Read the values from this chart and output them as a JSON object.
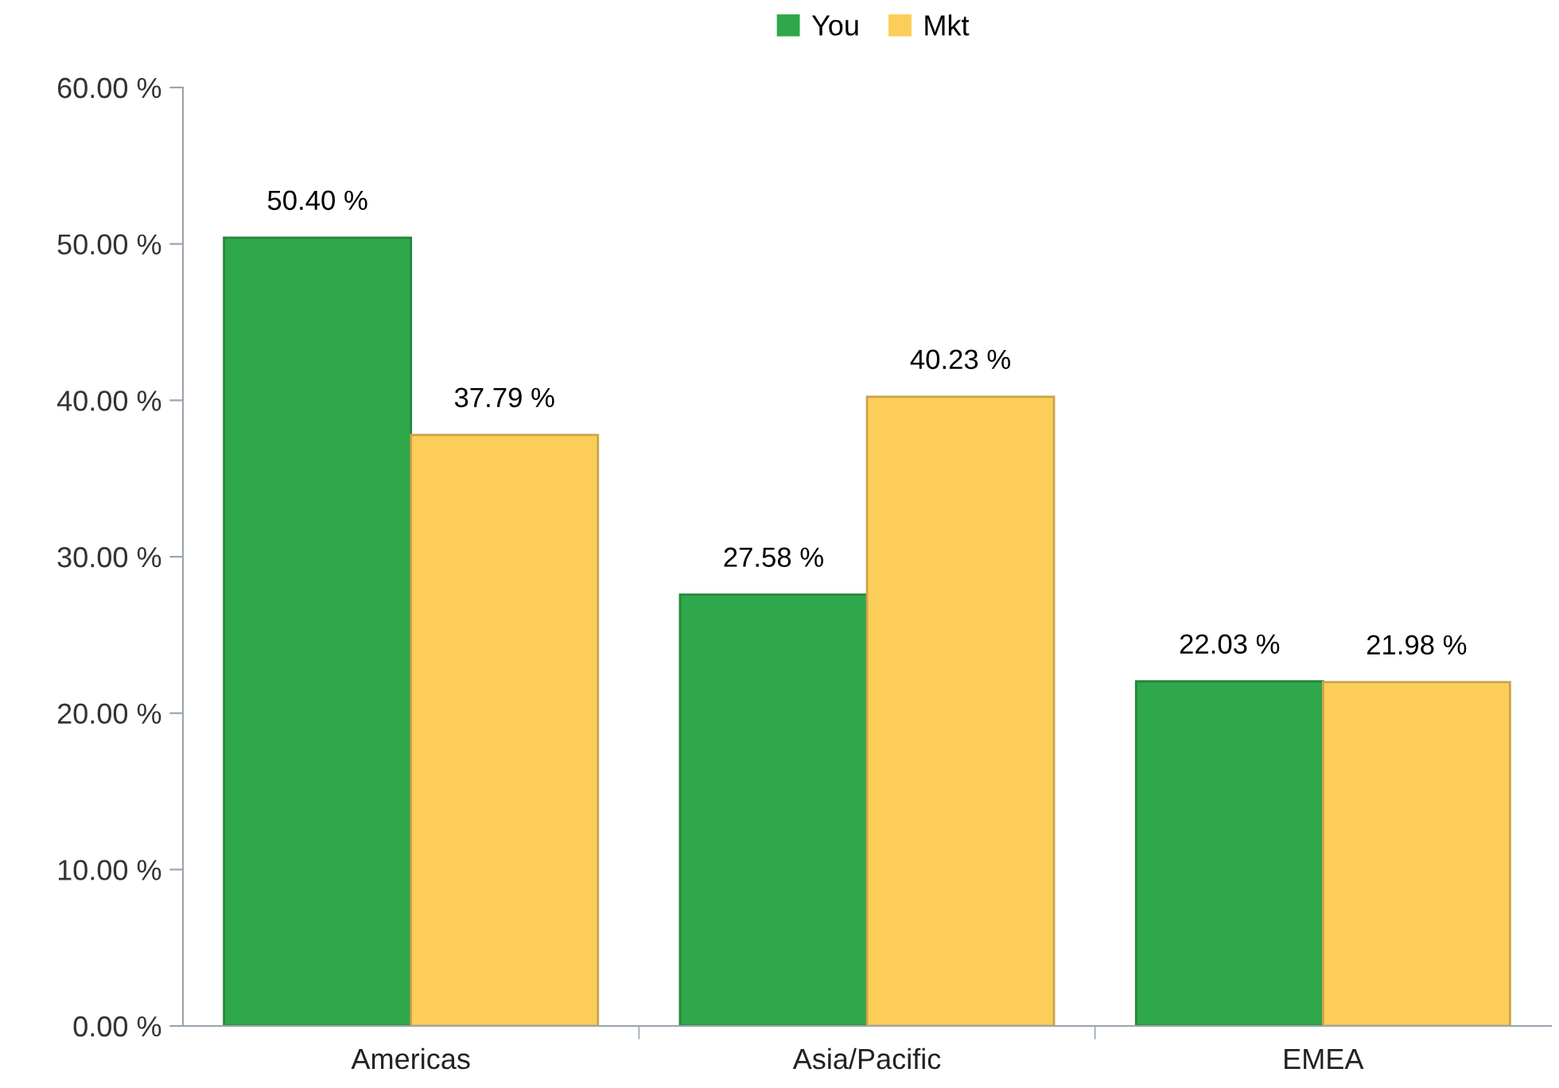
{
  "chart_data": {
    "type": "bar",
    "categories": [
      "Americas",
      "Asia/Pacific",
      "EMEA"
    ],
    "series": [
      {
        "name": "You",
        "color": "#2ea84a",
        "values": [
          50.4,
          27.58,
          22.03
        ],
        "value_labels": [
          "50.40 %",
          "27.58 %",
          "22.03 %"
        ]
      },
      {
        "name": "Mkt",
        "color": "#fdcd5a",
        "values": [
          37.79,
          40.23,
          21.98
        ],
        "value_labels": [
          "37.79 %",
          "40.23 %",
          "21.98 %"
        ]
      }
    ],
    "ylim": [
      0,
      60
    ],
    "yticks": [
      {
        "value": 0,
        "label": "0.00 %"
      },
      {
        "value": 10,
        "label": "10.00 %"
      },
      {
        "value": 20,
        "label": "20.00 %"
      },
      {
        "value": 30,
        "label": "30.00 %"
      },
      {
        "value": 40,
        "label": "40.00 %"
      },
      {
        "value": 50,
        "label": "50.00 %"
      },
      {
        "value": 60,
        "label": "60.00 %"
      }
    ],
    "grid": false,
    "legend": "top"
  }
}
